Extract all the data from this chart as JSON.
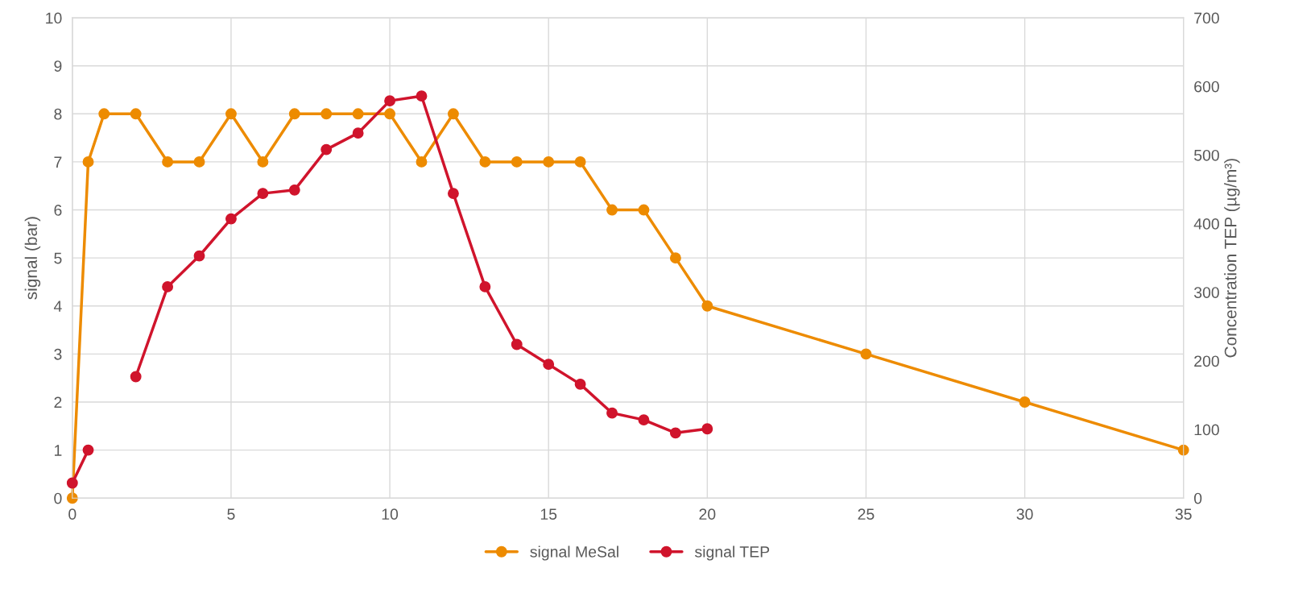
{
  "chart_data": {
    "type": "line",
    "ylabel": "signal (bar)",
    "y2label": "Concentration TEP (µg/m³)",
    "xlim": [
      0,
      35
    ],
    "xticks": [
      0,
      5,
      10,
      15,
      20,
      25,
      30,
      35
    ],
    "ylim": [
      0,
      10
    ],
    "yticks": [
      0,
      1,
      2,
      3,
      4,
      5,
      6,
      7,
      8,
      9,
      10
    ],
    "y2lim": [
      0,
      700
    ],
    "y2ticks": [
      0,
      100,
      200,
      300,
      400,
      500,
      600,
      700
    ],
    "grid": true,
    "legend": "bottom",
    "marker": "circle",
    "line_style": "solid",
    "series": [
      {
        "name": "signal MeSal",
        "color": "#ed8b00",
        "x": [
          0,
          0.5,
          1,
          2,
          3,
          4,
          5,
          6,
          7,
          8,
          9,
          10,
          11,
          12,
          13,
          14,
          15,
          16,
          17,
          18,
          19,
          20,
          25,
          30,
          35
        ],
        "values": [
          0,
          7,
          8,
          8,
          7,
          7,
          8,
          7,
          8,
          8,
          8,
          8,
          7,
          8,
          7,
          7,
          7,
          7,
          6,
          6,
          5,
          4,
          3,
          2,
          1
        ]
      },
      {
        "name": "signal TEP",
        "color": "#d0142c",
        "axis": "y2",
        "x": [
          0,
          0.5,
          1,
          2,
          3,
          4,
          5,
          6,
          7,
          8,
          9,
          10,
          11,
          12,
          13,
          14,
          15,
          16,
          17,
          18,
          19,
          20
        ],
        "values": [
          22,
          70,
          null,
          177,
          308,
          353,
          407,
          444,
          449,
          508,
          532,
          579,
          586,
          444,
          308,
          224,
          195,
          166,
          124,
          114,
          95,
          101
        ]
      }
    ]
  }
}
